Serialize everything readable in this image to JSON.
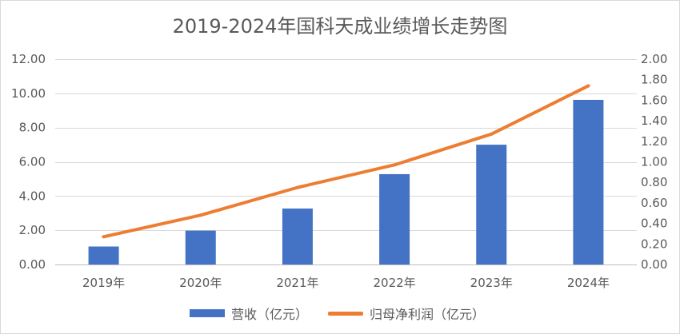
{
  "chart_data": {
    "type": "bar",
    "title": "2019-2024年国科天成业绩增长走势图",
    "categories": [
      "2019年",
      "2020年",
      "2021年",
      "2022年",
      "2023年",
      "2024年"
    ],
    "series": [
      {
        "name": "营收（亿元）",
        "type": "bar",
        "axis": "left",
        "color": "#4472c4",
        "values": [
          1.05,
          1.98,
          3.27,
          5.28,
          7.0,
          9.62
        ]
      },
      {
        "name": "归母净利润（亿元）",
        "type": "line",
        "axis": "right",
        "color": "#ed7d31",
        "values": [
          0.27,
          0.48,
          0.75,
          0.97,
          1.27,
          1.74
        ]
      }
    ],
    "y_left": {
      "min": 0,
      "max": 12,
      "step": 2,
      "ticks": [
        "0.00",
        "2.00",
        "4.00",
        "6.00",
        "8.00",
        "10.00",
        "12.00"
      ]
    },
    "y_right": {
      "min": 0,
      "max": 2,
      "step": 0.2,
      "ticks": [
        "0.00",
        "0.20",
        "0.40",
        "0.60",
        "0.80",
        "1.00",
        "1.20",
        "1.40",
        "1.60",
        "1.80",
        "2.00"
      ]
    },
    "grid": true,
    "legend": "bottom"
  }
}
